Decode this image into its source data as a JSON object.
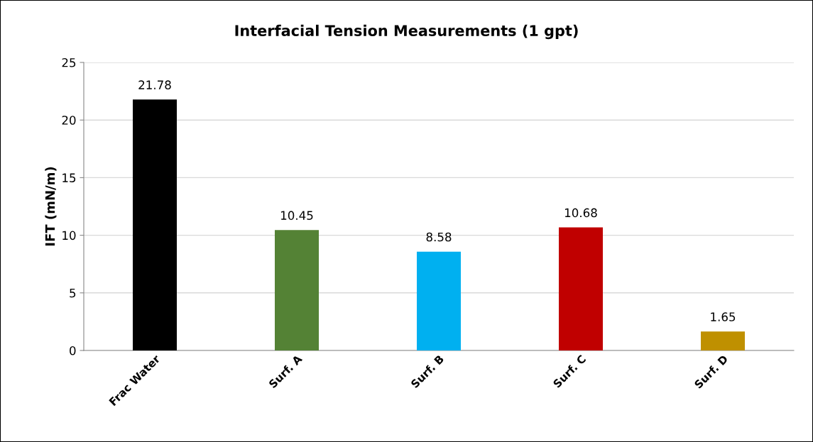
{
  "chart_data": {
    "type": "bar",
    "title": "Interfacial Tension Measurements (1 gpt)",
    "ylabel": "IFT (mN/m)",
    "categories": [
      "Frac Water",
      "Surf. A",
      "Surf. B",
      "Surf. C",
      "Surf. D"
    ],
    "values": [
      21.78,
      10.45,
      8.58,
      10.68,
      1.65
    ],
    "colors": [
      "#000000",
      "#548235",
      "#00b0f0",
      "#c00000",
      "#bf9000"
    ],
    "ylim": [
      0,
      25
    ],
    "yticks": [
      0,
      5,
      10,
      15,
      20,
      25
    ],
    "grid": "y",
    "data_labels": true
  }
}
